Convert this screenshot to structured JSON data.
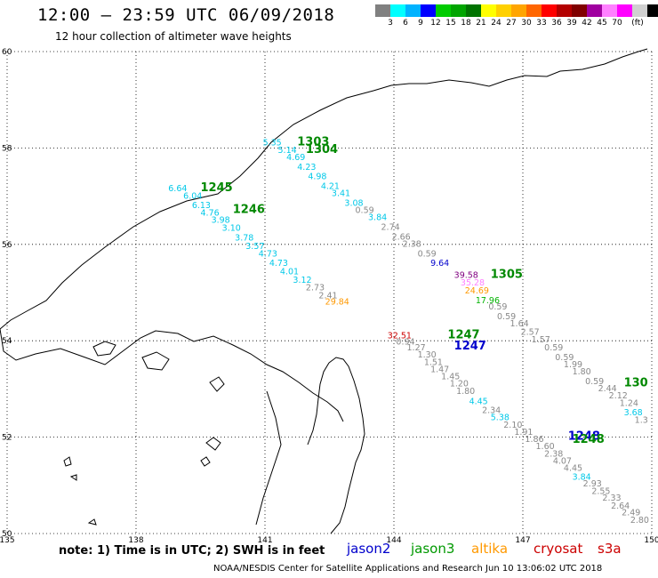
{
  "header": {
    "title": "12:00 – 23:59 UTC 06/09/2018",
    "subtitle": "12 hour collection of altimeter wave heights"
  },
  "colorbar": {
    "colors": [
      "#808080",
      "#00ffff",
      "#00b3ff",
      "#0000ff",
      "#00cc00",
      "#00a500",
      "#007300",
      "#ffff00",
      "#ffd000",
      "#ffa500",
      "#ff6600",
      "#ff0000",
      "#b30000",
      "#800000",
      "#a000a0",
      "#ff80ff",
      "#ff00ff",
      "#d0d0d0",
      "#000000"
    ],
    "ticks": [
      "3",
      "6",
      "9",
      "12",
      "15",
      "18",
      "21",
      "24",
      "27",
      "30",
      "33",
      "36",
      "39",
      "42",
      "45",
      "70",
      "(ft)"
    ]
  },
  "map": {
    "lon_ticks": [
      "135",
      "138",
      "141",
      "144",
      "147",
      "150"
    ],
    "lat_ticks": [
      "60",
      "58",
      "56",
      "54",
      "52",
      "50"
    ],
    "lon_range": [
      135,
      150
    ],
    "lat_range": [
      50,
      60
    ]
  },
  "tracks": {
    "gray": "#888888",
    "cyan": "#00c8e8",
    "green": "#008800",
    "blue": "#0000cc",
    "red": "#cc0000",
    "orange": "#ff9900",
    "purple": "#800080",
    "pink": "#ff80ff",
    "lime": "#00b300"
  },
  "labels": {
    "track_a": [
      {
        "t": "5.35",
        "c": "cyan",
        "lon": 140.95,
        "lat": 58.05
      },
      {
        "t": "1303",
        "c": "green",
        "lon": 141.75,
        "lat": 58.05,
        "big": true
      },
      {
        "t": "5.14",
        "c": "cyan",
        "lon": 141.3,
        "lat": 57.9
      },
      {
        "t": "1304",
        "c": "green",
        "lon": 141.95,
        "lat": 57.9,
        "big": true
      },
      {
        "t": "4.69",
        "c": "cyan",
        "lon": 141.5,
        "lat": 57.75
      },
      {
        "t": "4.23",
        "c": "cyan",
        "lon": 141.75,
        "lat": 57.55
      },
      {
        "t": "4.98",
        "c": "cyan",
        "lon": 142.0,
        "lat": 57.35
      },
      {
        "t": "4.21",
        "c": "cyan",
        "lon": 142.3,
        "lat": 57.15
      },
      {
        "t": "3.41",
        "c": "cyan",
        "lon": 142.55,
        "lat": 57.0
      },
      {
        "t": "3.08",
        "c": "cyan",
        "lon": 142.85,
        "lat": 56.8
      },
      {
        "t": "0.59",
        "c": "gray",
        "lon": 143.1,
        "lat": 56.65
      },
      {
        "t": "3.84",
        "c": "cyan",
        "lon": 143.4,
        "lat": 56.5
      },
      {
        "t": "2.74",
        "c": "gray",
        "lon": 143.7,
        "lat": 56.3
      },
      {
        "t": "2.66",
        "c": "gray",
        "lon": 143.95,
        "lat": 56.1
      },
      {
        "t": "2.38",
        "c": "gray",
        "lon": 144.2,
        "lat": 55.95
      },
      {
        "t": "0.59",
        "c": "gray",
        "lon": 144.55,
        "lat": 55.75
      },
      {
        "t": "9.64",
        "c": "blue",
        "lon": 144.85,
        "lat": 55.55
      },
      {
        "t": "39.58",
        "c": "purple",
        "lon": 145.4,
        "lat": 55.3
      },
      {
        "t": "1305",
        "c": "green",
        "lon": 146.25,
        "lat": 55.3,
        "big": true
      },
      {
        "t": "35.28",
        "c": "pink",
        "lon": 145.55,
        "lat": 55.15
      },
      {
        "t": "24.69",
        "c": "orange",
        "lon": 145.65,
        "lat": 54.98
      },
      {
        "t": "17.96",
        "c": "lime",
        "lon": 145.9,
        "lat": 54.78
      },
      {
        "t": "0.59",
        "c": "gray",
        "lon": 146.2,
        "lat": 54.65
      },
      {
        "t": "0.59",
        "c": "gray",
        "lon": 146.4,
        "lat": 54.45
      },
      {
        "t": "1.64",
        "c": "gray",
        "lon": 146.7,
        "lat": 54.3
      },
      {
        "t": "2.57",
        "c": "gray",
        "lon": 146.95,
        "lat": 54.12
      },
      {
        "t": "1.57",
        "c": "gray",
        "lon": 147.2,
        "lat": 53.97
      },
      {
        "t": "0.59",
        "c": "gray",
        "lon": 147.5,
        "lat": 53.8
      },
      {
        "t": "0.59",
        "c": "gray",
        "lon": 147.75,
        "lat": 53.6
      },
      {
        "t": "1.99",
        "c": "gray",
        "lon": 147.95,
        "lat": 53.45
      },
      {
        "t": "1.80",
        "c": "gray",
        "lon": 148.15,
        "lat": 53.3
      },
      {
        "t": "0.59",
        "c": "gray",
        "lon": 148.45,
        "lat": 53.1
      },
      {
        "t": "2.44",
        "c": "gray",
        "lon": 148.75,
        "lat": 52.95
      },
      {
        "t": "2.12",
        "c": "gray",
        "lon": 149.0,
        "lat": 52.8
      },
      {
        "t": "1.24",
        "c": "gray",
        "lon": 149.25,
        "lat": 52.65
      },
      {
        "t": "130",
        "c": "green",
        "lon": 149.35,
        "lat": 53.05,
        "big": true
      },
      {
        "t": "3.68",
        "c": "cyan",
        "lon": 149.35,
        "lat": 52.45
      },
      {
        "t": "1.3",
        "c": "gray",
        "lon": 149.6,
        "lat": 52.3
      }
    ],
    "track_b": [
      {
        "t": "6.64",
        "c": "cyan",
        "lon": 138.75,
        "lat": 57.1
      },
      {
        "t": "1245",
        "c": "green",
        "lon": 139.5,
        "lat": 57.1,
        "big": true
      },
      {
        "t": "6.04",
        "c": "cyan",
        "lon": 139.1,
        "lat": 56.95
      },
      {
        "t": "6.13",
        "c": "cyan",
        "lon": 139.3,
        "lat": 56.75
      },
      {
        "t": "1246",
        "c": "green",
        "lon": 140.25,
        "lat": 56.65,
        "big": true
      },
      {
        "t": "4.76",
        "c": "cyan",
        "lon": 139.5,
        "lat": 56.6
      },
      {
        "t": "3.98",
        "c": "cyan",
        "lon": 139.75,
        "lat": 56.45
      },
      {
        "t": "3.10",
        "c": "cyan",
        "lon": 140.0,
        "lat": 56.28
      },
      {
        "t": "3.78",
        "c": "cyan",
        "lon": 140.3,
        "lat": 56.08
      },
      {
        "t": "3.57",
        "c": "cyan",
        "lon": 140.55,
        "lat": 55.9
      },
      {
        "t": "4.73",
        "c": "cyan",
        "lon": 140.85,
        "lat": 55.75
      },
      {
        "t": "4.73",
        "c": "cyan",
        "lon": 141.1,
        "lat": 55.55
      },
      {
        "t": "4.01",
        "c": "cyan",
        "lon": 141.35,
        "lat": 55.38
      },
      {
        "t": "3.12",
        "c": "cyan",
        "lon": 141.65,
        "lat": 55.2
      },
      {
        "t": "2.73",
        "c": "gray",
        "lon": 141.95,
        "lat": 55.05
      },
      {
        "t": "2.41",
        "c": "gray",
        "lon": 142.25,
        "lat": 54.88
      },
      {
        "t": "29.84",
        "c": "orange",
        "lon": 142.4,
        "lat": 54.75
      }
    ],
    "track_c": [
      {
        "t": "32.51",
        "c": "red",
        "lon": 143.85,
        "lat": 54.05
      },
      {
        "t": "1247",
        "c": "green",
        "lon": 145.25,
        "lat": 54.05,
        "big": true
      },
      {
        "t": "0.94",
        "c": "gray",
        "lon": 144.05,
        "lat": 53.92
      },
      {
        "t": "1247",
        "c": "blue",
        "lon": 145.4,
        "lat": 53.82,
        "big": true
      },
      {
        "t": "1.27",
        "c": "gray",
        "lon": 144.3,
        "lat": 53.8
      },
      {
        "t": "1.30",
        "c": "gray",
        "lon": 144.55,
        "lat": 53.65
      },
      {
        "t": "1.51",
        "c": "gray",
        "lon": 144.7,
        "lat": 53.5
      },
      {
        "t": "1.47",
        "c": "gray",
        "lon": 144.85,
        "lat": 53.35
      },
      {
        "t": "1.45",
        "c": "gray",
        "lon": 145.1,
        "lat": 53.2
      },
      {
        "t": "1.20",
        "c": "gray",
        "lon": 145.3,
        "lat": 53.05
      },
      {
        "t": "1.80",
        "c": "gray",
        "lon": 145.45,
        "lat": 52.9
      },
      {
        "t": "4.45",
        "c": "cyan",
        "lon": 145.75,
        "lat": 52.68
      },
      {
        "t": "2.34",
        "c": "gray",
        "lon": 146.05,
        "lat": 52.5
      },
      {
        "t": "5.38",
        "c": "cyan",
        "lon": 146.25,
        "lat": 52.35
      },
      {
        "t": "2.10",
        "c": "gray",
        "lon": 146.55,
        "lat": 52.2
      },
      {
        "t": "1.91",
        "c": "gray",
        "lon": 146.8,
        "lat": 52.05
      },
      {
        "t": "1248",
        "c": "blue",
        "lon": 148.05,
        "lat": 51.95,
        "big": true
      },
      {
        "t": "1248",
        "c": "green",
        "lon": 148.15,
        "lat": 51.88,
        "big": true
      },
      {
        "t": "1.86",
        "c": "gray",
        "lon": 147.05,
        "lat": 51.9
      },
      {
        "t": "1.60",
        "c": "gray",
        "lon": 147.3,
        "lat": 51.75
      },
      {
        "t": "2.38",
        "c": "gray",
        "lon": 147.5,
        "lat": 51.6
      },
      {
        "t": "4.07",
        "c": "gray",
        "lon": 147.7,
        "lat": 51.45
      },
      {
        "t": "4.45",
        "c": "gray",
        "lon": 147.95,
        "lat": 51.3
      },
      {
        "t": "3.84",
        "c": "cyan",
        "lon": 148.15,
        "lat": 51.12
      },
      {
        "t": "2.93",
        "c": "gray",
        "lon": 148.4,
        "lat": 50.98
      },
      {
        "t": "2.55",
        "c": "gray",
        "lon": 148.6,
        "lat": 50.82
      },
      {
        "t": "2.33",
        "c": "gray",
        "lon": 148.85,
        "lat": 50.68
      },
      {
        "t": "2.64",
        "c": "gray",
        "lon": 149.05,
        "lat": 50.52
      },
      {
        "t": "2.49",
        "c": "gray",
        "lon": 149.3,
        "lat": 50.38
      },
      {
        "t": "2.80",
        "c": "gray",
        "lon": 149.5,
        "lat": 50.22
      }
    ]
  },
  "footer": {
    "note": "note: 1) Time is in UTC; 2) SWH is in feet",
    "satellites": [
      {
        "name": "jason2",
        "color": "#0000cc"
      },
      {
        "name": "jason3",
        "color": "#009900"
      },
      {
        "name": "altika",
        "color": "#ff9900"
      },
      {
        "name": "cryosat",
        "color": "#cc0000"
      },
      {
        "name": "s3a",
        "color": "#cc0000"
      }
    ],
    "credit": "NOAA/NESDIS Center for Satellite Applications and Research   Jun 10 13:06:02 UTC 2018"
  }
}
